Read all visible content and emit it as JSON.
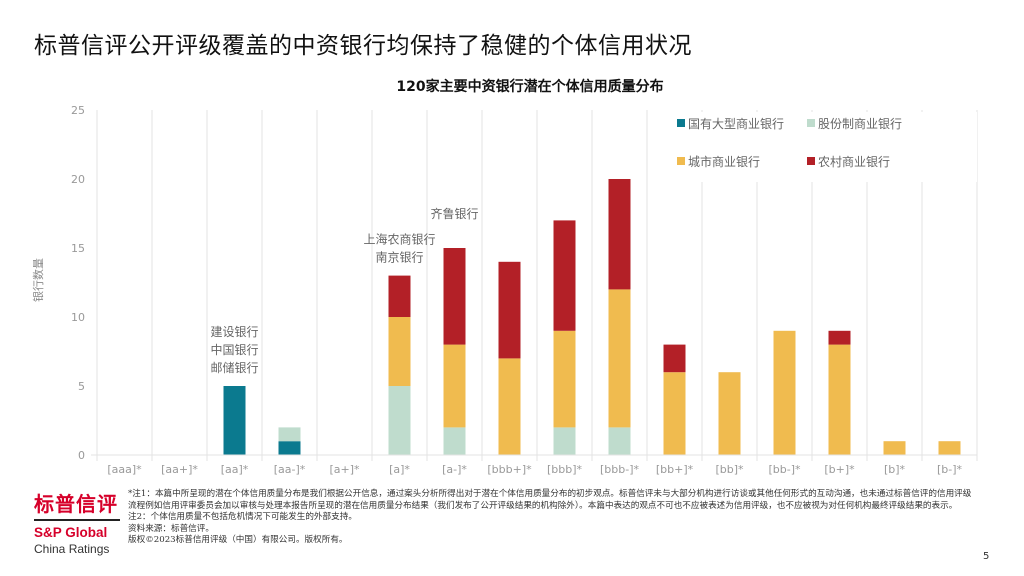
{
  "page": {
    "title": "标普信评公开评级覆盖的中资银行均保持了稳健的个体信用状况",
    "page_number": "5"
  },
  "chart_data": {
    "type": "bar",
    "stacked": true,
    "title": "120家主要中资银行潜在个体信用质量分布",
    "xlabel": "",
    "ylabel": "银行数量",
    "ylim": [
      0,
      25
    ],
    "yticks": [
      0,
      5,
      10,
      15,
      20,
      25
    ],
    "grid": "vertical category separators",
    "legend_position": "top-right",
    "categories": [
      "[aaa]*",
      "[aa+]*",
      "[aa]*",
      "[aa-]*",
      "[a+]*",
      "[a]*",
      "[a-]*",
      "[bbb+]*",
      "[bbb]*",
      "[bbb-]*",
      "[bb+]*",
      "[bb]*",
      "[bb-]*",
      "[b+]*",
      "[b]*",
      "[b-]*"
    ],
    "series": [
      {
        "name": "国有大型商业银行",
        "color": "#0b7a8f",
        "values": [
          0,
          0,
          5,
          1,
          0,
          0,
          0,
          0,
          0,
          0,
          0,
          0,
          0,
          0,
          0,
          0
        ]
      },
      {
        "name": "股份制商业银行",
        "color": "#bfdccd",
        "values": [
          0,
          0,
          0,
          1,
          0,
          5,
          2,
          0,
          2,
          2,
          0,
          0,
          0,
          0,
          0,
          0
        ]
      },
      {
        "name": "城市商业银行",
        "color": "#f0bb4f",
        "values": [
          0,
          0,
          0,
          0,
          0,
          5,
          6,
          7,
          7,
          10,
          6,
          6,
          9,
          8,
          1,
          1
        ]
      },
      {
        "name": "农村商业银行",
        "color": "#b32027",
        "values": [
          0,
          0,
          0,
          0,
          0,
          3,
          7,
          7,
          8,
          8,
          2,
          0,
          0,
          1,
          0,
          0
        ]
      }
    ],
    "annotations": [
      {
        "category": "[aa]*",
        "lines": [
          "建设银行",
          "中国银行",
          "邮储银行"
        ]
      },
      {
        "category": "[a]*",
        "lines": [
          "上海农商银行",
          "南京银行"
        ]
      },
      {
        "category": "[a-]*",
        "lines": [
          "齐鲁银行"
        ]
      }
    ]
  },
  "footer": {
    "logo_cn": "标普信评",
    "logo_en": "S&P Global",
    "logo_sub": "China Ratings",
    "notes": [
      "*注1：本篇中所呈现的潜在个体信用质量分布是我们根据公开信息，通过案头分析所得出对于潜在个体信用质量分布的初步观点。标普信评未与大部分机构进行访谈或其他任何形式的互动沟通，也未通过标普信评的信用评级流程例如信用评审委员会加以审核与处理本报告所呈现的潜在信用质量分布结果（我们发布了公开评级结果的机构除外）。本篇中表达的观点不可也不应被表述为信用评级，也不应被视为对任何机构最终评级结果的表示。",
      "注2：个体信用质量不包括危机情况下可能发生的外部支持。",
      "资料来源：标普信评。",
      "版权©2023标普信用评级（中国）有限公司。版权所有。"
    ]
  }
}
